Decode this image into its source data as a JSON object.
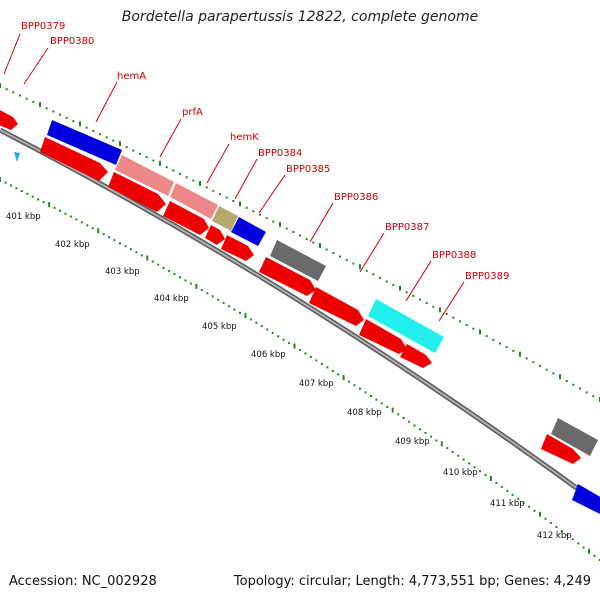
{
  "title": "Bordetella parapertussis 12822, complete genome",
  "footer": {
    "accession": "Accession: NC_002928",
    "summary": "Topology: circular; Length: 4,773,551 bp; Genes: 4,249"
  },
  "colors": {
    "backbone": "#808080",
    "tick": "#1f8a1f",
    "label": "#d00000",
    "cds": "#ee0000",
    "blue": "#0000dd",
    "pink": "#ee8888",
    "olive": "#b5a870",
    "gray": "#6a6a6a",
    "cyan": "#22eeee"
  },
  "kbp_labels": [
    "401 kbp",
    "402 kbp",
    "403 kbp",
    "404 kbp",
    "405 kbp",
    "406 kbp",
    "407 kbp",
    "408 kbp",
    "409 kbp",
    "410 kbp",
    "411 kbp",
    "412 kbp"
  ],
  "gene_labels": [
    "BPP0379",
    "BPP0380",
    "hemA",
    "prfA",
    "hemK",
    "BPP0384",
    "BPP0385",
    "BPP0386",
    "BPP0387",
    "BPP0388",
    "BPP0389"
  ]
}
